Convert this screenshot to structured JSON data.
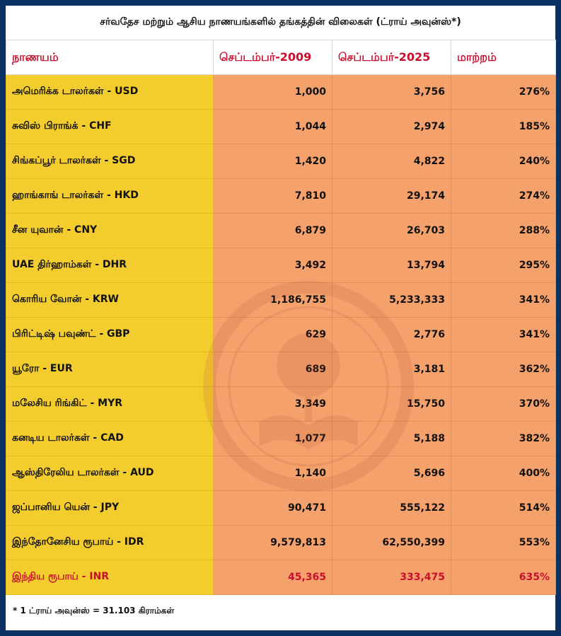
{
  "title": "சர்வதேச மற்றும் ஆசிய நாணயங்களில் தங்கத்தின் விலைகள் (ட்ராய் அவுன்ஸ்*)",
  "headers": [
    "நாணயம்",
    "செப்டம்பர்-2009",
    "செப்டம்பர்-2025",
    "மாற்றம்"
  ],
  "rows": [
    {
      "currency": "அமெரிக்க டாலர்கள் - USD",
      "sep2009": "1,000",
      "sep2025": "3,756",
      "change": "276%"
    },
    {
      "currency": "சுவிஸ் பிராங்க் - CHF",
      "sep2009": "1,044",
      "sep2025": "2,974",
      "change": "185%"
    },
    {
      "currency": "சிங்கப்பூர் டாலர்கள் - SGD",
      "sep2009": "1,420",
      "sep2025": "4,822",
      "change": "240%"
    },
    {
      "currency": "ஹாங்காங் டாலர்கள் - HKD",
      "sep2009": "7,810",
      "sep2025": "29,174",
      "change": "274%"
    },
    {
      "currency": "சீன யுவான் - CNY",
      "sep2009": "6,879",
      "sep2025": "26,703",
      "change": "288%"
    },
    {
      "currency": "UAE திர்ஹாம்கள் - DHR",
      "sep2009": "3,492",
      "sep2025": "13,794",
      "change": "295%"
    },
    {
      "currency": "கொரிய வோன் - KRW",
      "sep2009": "1,186,755",
      "sep2025": "5,233,333",
      "change": "341%"
    },
    {
      "currency": "பிரிட்டிஷ் பவுண்ட் - GBP",
      "sep2009": "629",
      "sep2025": "2,776",
      "change": "341%"
    },
    {
      "currency": "யூரோ - EUR",
      "sep2009": "689",
      "sep2025": "3,181",
      "change": "362%"
    },
    {
      "currency": "மலேசிய ரிங்கிட் - MYR",
      "sep2009": "3,349",
      "sep2025": "15,750",
      "change": "370%"
    },
    {
      "currency": "கனடிய டாலர்கள் - CAD",
      "sep2009": "1,077",
      "sep2025": "5,188",
      "change": "382%"
    },
    {
      "currency": "ஆஸ்திரேலிய டாலர்கள் - AUD",
      "sep2009": "1,140",
      "sep2025": "5,696",
      "change": "400%"
    },
    {
      "currency": "ஜப்பானிய யென் - JPY",
      "sep2009": "90,471",
      "sep2025": "555,122",
      "change": "514%"
    },
    {
      "currency": "இந்தோனேசிய ரூபாய் - IDR",
      "sep2009": "9,579,813",
      "sep2025": "62,550,399",
      "change": "553%"
    },
    {
      "currency": "இந்திய ரூபாய் - INR",
      "sep2009": "45,365",
      "sep2025": "333,475",
      "change": "635%"
    }
  ],
  "footnote": "* 1 ட்ராய் அவுன்ஸ் = 31.103 கிராம்கள்",
  "colors": {
    "background": "#0b3163",
    "currency_column": "#f3cc2e",
    "value_columns": "#f5a16b",
    "accent_red": "#c8102e"
  },
  "watermark_icon": "globe-book-logo-icon"
}
